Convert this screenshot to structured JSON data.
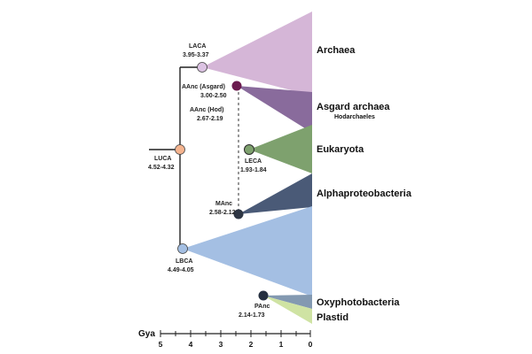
{
  "clades": {
    "archaea": {
      "label": "Archaea",
      "color": "#d5b6d7"
    },
    "asgard": {
      "label": "Asgard archaea",
      "sublabel": "Hodarchaeles",
      "color": "#896b9c"
    },
    "eukaryota": {
      "label": "Eukaryota",
      "color": "#7ea16e"
    },
    "alphaproteobacteria": {
      "label": "Alphaproteobacteria",
      "color": "#4a5a77"
    },
    "bacteria": {
      "color": "#a4bfe3"
    },
    "oxyphotobacteria": {
      "label": "Oxyphotobacteria",
      "color": "#8399b1"
    },
    "plastid": {
      "label": "Plastid",
      "color": "#cfe3a3"
    }
  },
  "nodes": {
    "luca": {
      "name": "LUCA",
      "range": "4.52-4.32",
      "color": "#f5b48f"
    },
    "laca": {
      "name": "LACA",
      "range": "3.95-3.37",
      "color": "#dcc3e3"
    },
    "lbca": {
      "name": "LBCA",
      "range": "4.49-4.05",
      "color": "#a4bfe3"
    },
    "aanc_asgard": {
      "name": "AAnc (Asgard)",
      "range": "3.00-2.50",
      "color": "#6b1b4f"
    },
    "aanc_hod": {
      "name": "AAnc (Hod)",
      "range": "2.67-2.19"
    },
    "leca": {
      "name": "LECA",
      "range": "1.93-1.84",
      "color": "#7ea16e"
    },
    "manc": {
      "name": "MAnc",
      "range": "2.58-2.12",
      "color": "#2e3644"
    },
    "panc": {
      "name": "PAnc",
      "range": "2.14-1.73",
      "color": "#263040"
    }
  },
  "axis": {
    "title": "Gya",
    "ticks": [
      "5",
      "4",
      "3",
      "2",
      "1",
      "0"
    ]
  }
}
